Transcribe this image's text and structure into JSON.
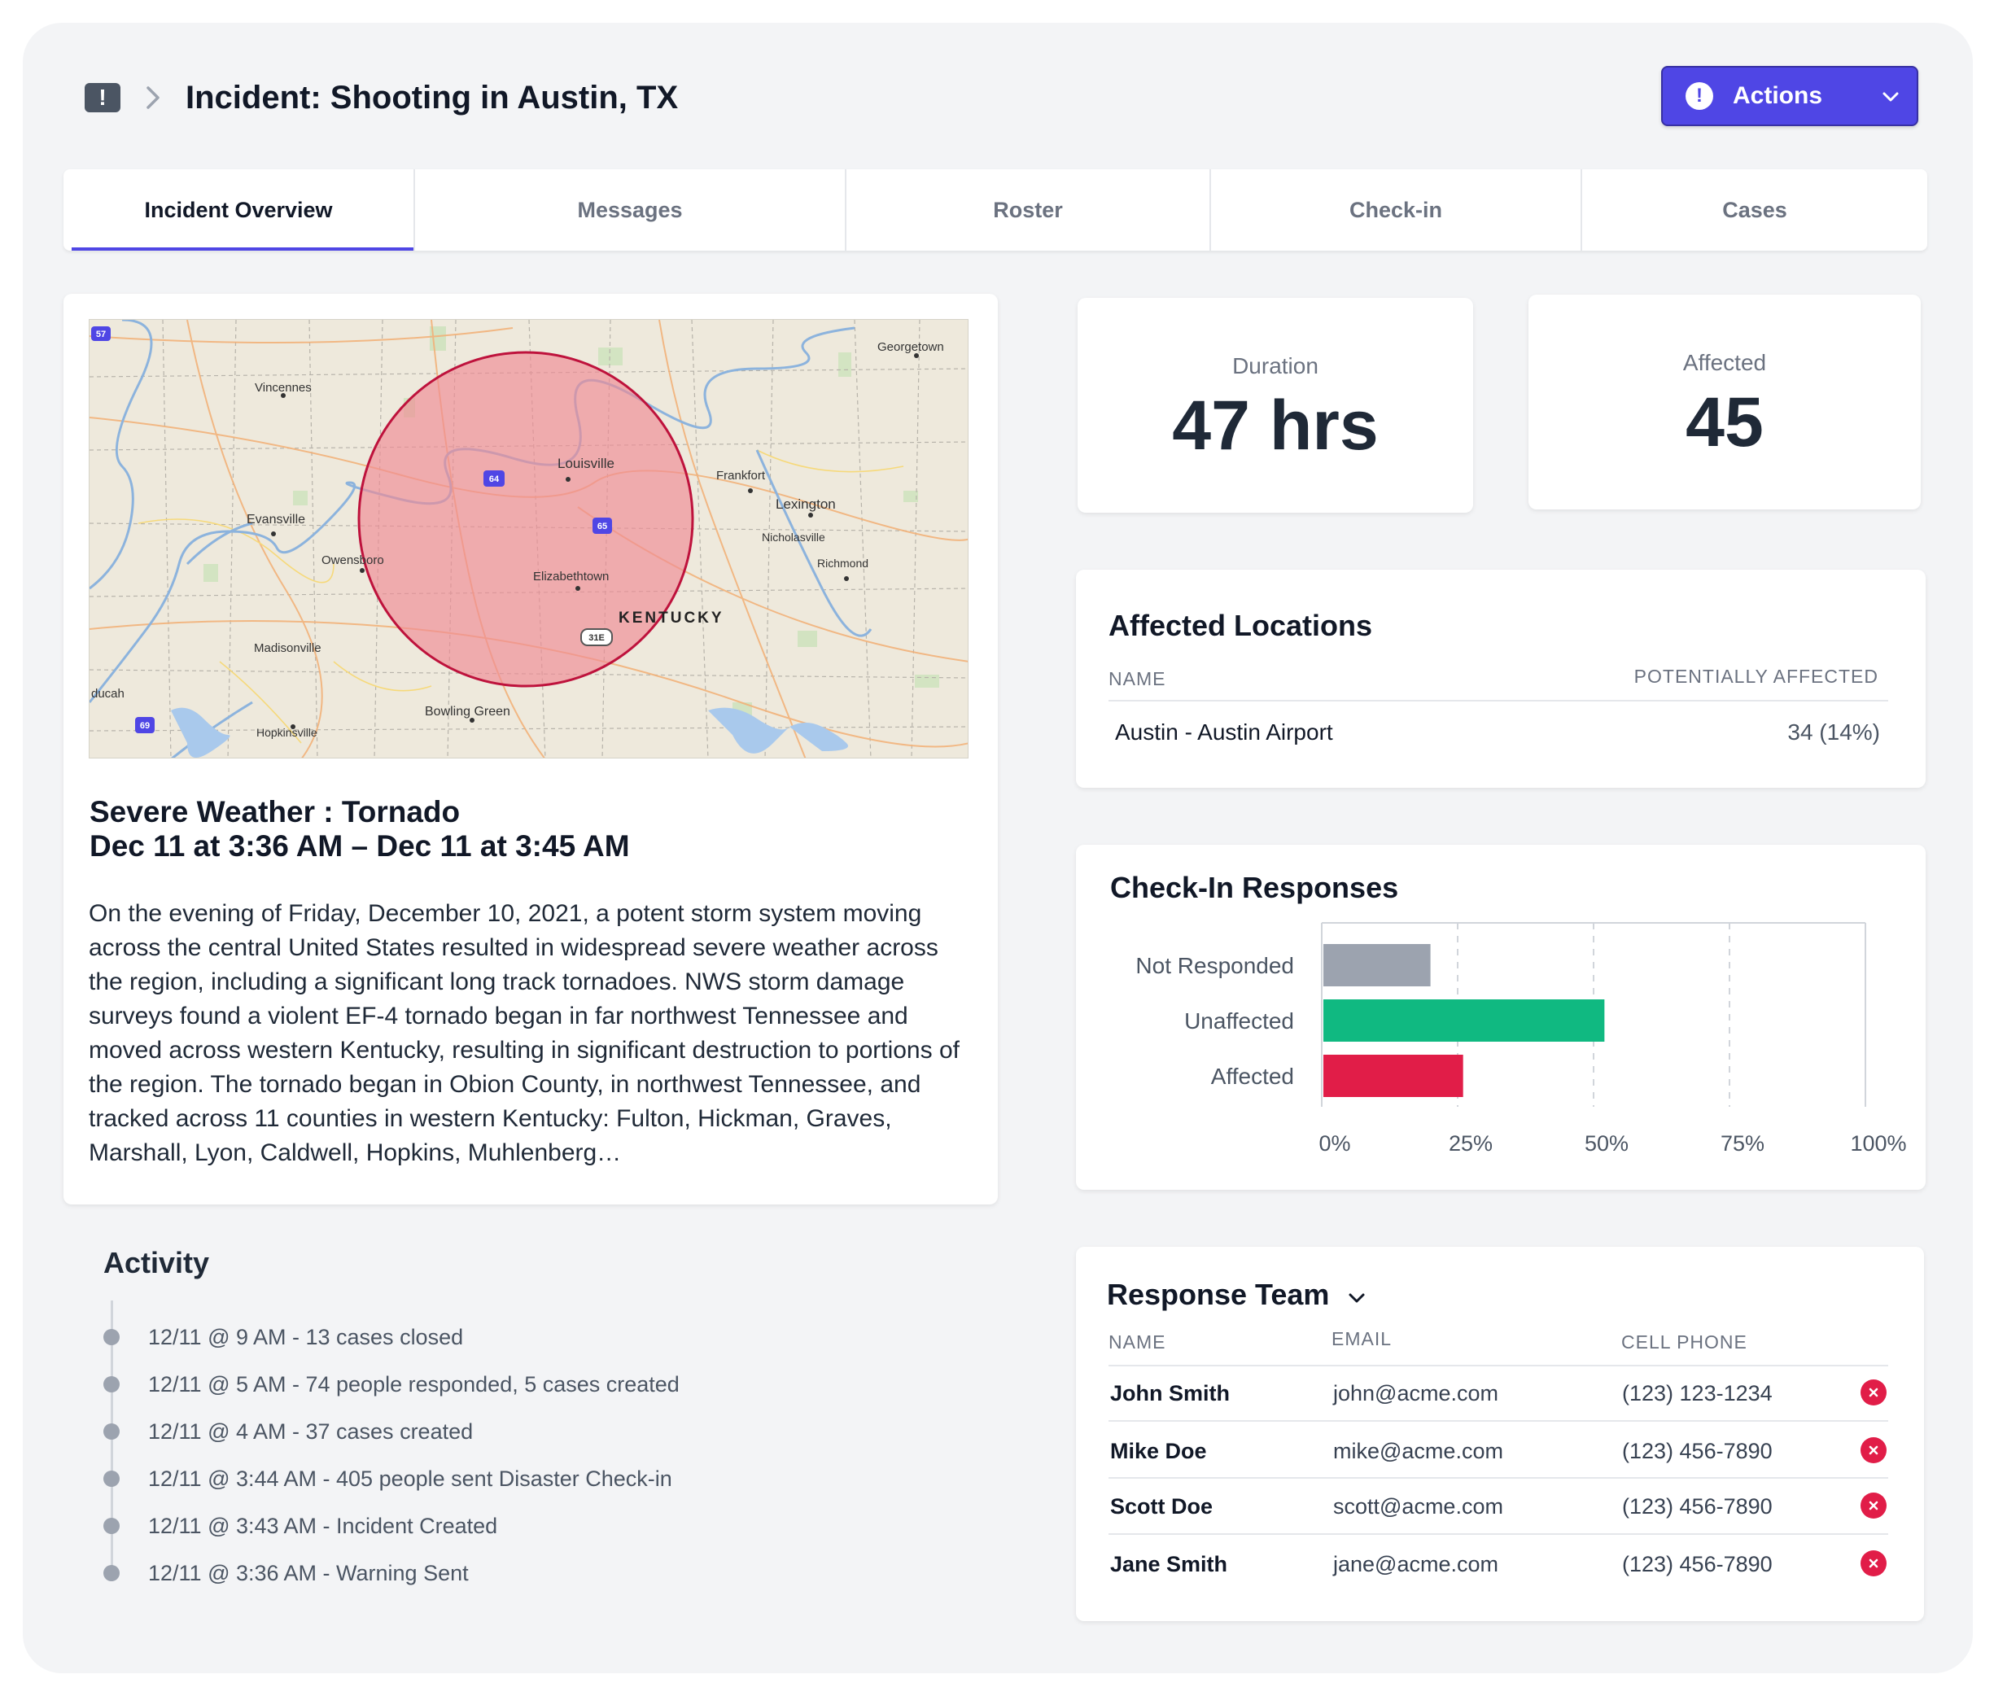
{
  "header": {
    "icon": "alert-square-icon",
    "title": "Incident: Shooting in Austin, TX",
    "actions_label": "Actions"
  },
  "tabs": [
    {
      "label": "Incident Overview",
      "active": true
    },
    {
      "label": "Messages",
      "active": false
    },
    {
      "label": "Roster",
      "active": false
    },
    {
      "label": "Check-in",
      "active": false
    },
    {
      "label": "Cases",
      "active": false
    }
  ],
  "map": {
    "labels": [
      "Georgetown",
      "Vincennes",
      "Louisville",
      "Frankfort",
      "Lexington",
      "Evansville",
      "Nicholasville",
      "Owensboro",
      "Richmond",
      "Elizabethtown",
      "KENTUCKY",
      "Madisonville",
      "ducah",
      "Bowling Green",
      "Hopkinsville"
    ],
    "shields": [
      "57",
      "64",
      "65",
      "31E",
      "69"
    ],
    "radius_color": "#f08a94"
  },
  "incident": {
    "type_line": "Severe Weather : Tornado",
    "time_line": "Dec 11 at 3:36 AM – Dec 11 at 3:45 AM",
    "description": "On the evening of Friday, December 10, 2021, a potent storm system moving across the central United States resulted in widespread severe weather across the region, including a significant long track tornadoes. NWS storm damage surveys found a violent EF-4 tornado began in far northwest Tennessee and moved across western Kentucky, resulting in significant destruction to portions of the region. The tornado began in Obion County, in northwest Tennessee, and tracked across 11 counties in western Kentucky: Fulton, Hickman, Graves, Marshall, Lyon, Caldwell, Hopkins, Muhlenberg…"
  },
  "activity": {
    "title": "Activity",
    "items": [
      "12/11 @ 9 AM - 13 cases closed",
      "12/11 @ 5 AM - 74 people responded, 5 cases created",
      "12/11 @ 4 AM - 37 cases created",
      "12/11 @ 3:44 AM - 405 people sent Disaster Check-in",
      "12/11 @ 3:43 AM - Incident Created",
      "12/11 @ 3:36 AM - Warning Sent"
    ]
  },
  "stats": {
    "duration_label": "Duration",
    "duration_value": "47 hrs",
    "affected_label": "Affected",
    "affected_value": "45"
  },
  "locations": {
    "title": "Affected Locations",
    "col_name": "NAME",
    "col_affected": "POTENTIALLY  AFFECTED",
    "rows": [
      {
        "name": "Austin - Austin Airport",
        "affected": "34 (14%)"
      }
    ]
  },
  "checkin": {
    "title": "Check-In Responses"
  },
  "chart_data": {
    "type": "bar",
    "orientation": "horizontal",
    "categories": [
      "Not Responded",
      "Unaffected",
      "Affected"
    ],
    "values": [
      20,
      52,
      26
    ],
    "unit": "%",
    "colors": [
      "#9ca3af",
      "#10b981",
      "#e11d48"
    ],
    "xlim": [
      0,
      100
    ],
    "xticks": [
      "0%",
      "25%",
      "50%",
      "75%",
      "100%"
    ],
    "grid": "vertical dashed"
  },
  "team": {
    "title": "Response Team",
    "col_name": "NAME",
    "col_email": "EMAIL",
    "col_phone": "CELL PHONE",
    "rows": [
      {
        "name": "John Smith",
        "email": "john@acme.com",
        "phone": "(123) 123-1234"
      },
      {
        "name": "Mike Doe",
        "email": "mike@acme.com",
        "phone": "(123) 456-7890"
      },
      {
        "name": "Scott Doe",
        "email": "scott@acme.com",
        "phone": "(123) 456-7890"
      },
      {
        "name": "Jane Smith",
        "email": "jane@acme.com",
        "phone": "(123) 456-7890"
      }
    ]
  },
  "colors": {
    "accent": "#4f46e5",
    "danger": "#e11d48",
    "success": "#10b981",
    "neutral": "#9ca3af"
  }
}
